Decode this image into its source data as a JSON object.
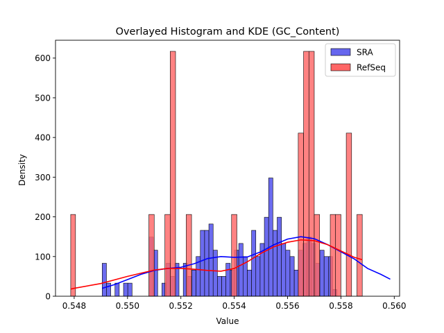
{
  "chart_data": {
    "type": "bar",
    "title": "Overlayed Histogram and KDE (GC_Content)",
    "xlabel": "Value",
    "ylabel": "Density",
    "xlim": [
      0.5473,
      0.5602
    ],
    "ylim": [
      0,
      645
    ],
    "xticks": [
      0.548,
      0.55,
      0.552,
      0.554,
      0.556,
      0.558,
      0.56
    ],
    "xtick_labels": [
      "0.548",
      "0.550",
      "0.552",
      "0.554",
      "0.556",
      "0.558",
      "0.560"
    ],
    "yticks": [
      0,
      100,
      200,
      300,
      400,
      500,
      600
    ],
    "ytick_labels": [
      "0",
      "100",
      "200",
      "300",
      "400",
      "500",
      "600"
    ],
    "legend_position": "top-right",
    "series": [
      {
        "name": "SRA",
        "color": "#0000ff",
        "bar_fill": "#6666ee",
        "bin_edges": [
          0.54905,
          0.55026,
          0.55147,
          0.55268,
          0.55389,
          0.5551,
          0.55631,
          0.55752,
          0.55873,
          0.55994
        ],
        "bins": [
          [
            0.54905,
            0.54921,
            83
          ],
          [
            0.54921,
            0.54937,
            33
          ],
          [
            0.54937,
            0.54953,
            0
          ],
          [
            0.54953,
            0.54969,
            33
          ],
          [
            0.54969,
            0.54985,
            0
          ],
          [
            0.54985,
            0.55001,
            33
          ],
          [
            0.55001,
            0.55017,
            33
          ],
          [
            0.55017,
            0.55033,
            0
          ],
          [
            0.55033,
            0.55049,
            0
          ],
          [
            0.55049,
            0.55065,
            0
          ],
          [
            0.55065,
            0.55081,
            0
          ],
          [
            0.55081,
            0.55097,
            149
          ],
          [
            0.55097,
            0.55113,
            116
          ],
          [
            0.55113,
            0.55129,
            0
          ],
          [
            0.55129,
            0.55145,
            33
          ],
          [
            0.55145,
            0.55161,
            83
          ],
          [
            0.55161,
            0.55177,
            50
          ],
          [
            0.55177,
            0.55193,
            83
          ],
          [
            0.55193,
            0.55209,
            0
          ],
          [
            0.55209,
            0.55225,
            83
          ],
          [
            0.55225,
            0.55241,
            50
          ],
          [
            0.55241,
            0.55257,
            66
          ],
          [
            0.55257,
            0.55273,
            100
          ],
          [
            0.55273,
            0.55289,
            166
          ],
          [
            0.55289,
            0.55305,
            166
          ],
          [
            0.55305,
            0.55321,
            182
          ],
          [
            0.55321,
            0.55337,
            116
          ],
          [
            0.55337,
            0.55353,
            50
          ],
          [
            0.55353,
            0.55369,
            50
          ],
          [
            0.55369,
            0.55385,
            83
          ],
          [
            0.55385,
            0.55401,
            66
          ],
          [
            0.55401,
            0.55417,
            116
          ],
          [
            0.55417,
            0.55433,
            133
          ],
          [
            0.55433,
            0.55449,
            100
          ],
          [
            0.55449,
            0.55465,
            66
          ],
          [
            0.55465,
            0.55481,
            166
          ],
          [
            0.55481,
            0.55497,
            100
          ],
          [
            0.55497,
            0.55513,
            133
          ],
          [
            0.55513,
            0.55529,
            199
          ],
          [
            0.55529,
            0.55545,
            298
          ],
          [
            0.55545,
            0.55561,
            166
          ],
          [
            0.55561,
            0.55577,
            199
          ],
          [
            0.55577,
            0.55593,
            133
          ],
          [
            0.55593,
            0.55609,
            116
          ],
          [
            0.55609,
            0.55625,
            100
          ],
          [
            0.55625,
            0.55641,
            66
          ],
          [
            0.55641,
            0.55657,
            116
          ],
          [
            0.55657,
            0.55673,
            133
          ],
          [
            0.55673,
            0.55689,
            149
          ],
          [
            0.55689,
            0.55705,
            133
          ],
          [
            0.55705,
            0.55721,
            83
          ],
          [
            0.55721,
            0.55737,
            116
          ],
          [
            0.55737,
            0.55753,
            100
          ],
          [
            0.55753,
            0.55769,
            100
          ],
          [
            0.55769,
            0.55785,
            17
          ]
        ],
        "kde": [
          [
            0.54905,
            20
          ],
          [
            0.5495,
            29
          ],
          [
            0.55,
            42
          ],
          [
            0.5505,
            55
          ],
          [
            0.551,
            65
          ],
          [
            0.5515,
            70
          ],
          [
            0.552,
            73
          ],
          [
            0.5525,
            82
          ],
          [
            0.553,
            95
          ],
          [
            0.5535,
            100
          ],
          [
            0.554,
            98
          ],
          [
            0.5545,
            99
          ],
          [
            0.555,
            112
          ],
          [
            0.5555,
            130
          ],
          [
            0.556,
            144
          ],
          [
            0.5565,
            150
          ],
          [
            0.557,
            145
          ],
          [
            0.5575,
            130
          ],
          [
            0.558,
            112
          ],
          [
            0.5585,
            94
          ],
          [
            0.559,
            70
          ],
          [
            0.5595,
            55
          ],
          [
            0.55985,
            43
          ]
        ]
      },
      {
        "name": "RefSeq",
        "color": "#ff0000",
        "bar_fill": "#ff6666",
        "bins": [
          [
            0.54787,
            0.54805,
            206
          ],
          [
            0.5508,
            0.551,
            206
          ],
          [
            0.5514,
            0.5516,
            206
          ],
          [
            0.5516,
            0.5518,
            617
          ],
          [
            0.5522,
            0.5524,
            206
          ],
          [
            0.5539,
            0.5541,
            206
          ],
          [
            0.5564,
            0.5566,
            411
          ],
          [
            0.5566,
            0.5568,
            617
          ],
          [
            0.5568,
            0.557,
            617
          ],
          [
            0.557,
            0.5572,
            206
          ],
          [
            0.5576,
            0.5578,
            206
          ],
          [
            0.5578,
            0.558,
            206
          ],
          [
            0.5582,
            0.5584,
            411
          ],
          [
            0.5586,
            0.5588,
            206
          ]
        ],
        "kde": [
          [
            0.54787,
            18
          ],
          [
            0.548,
            20
          ],
          [
            0.549,
            32
          ],
          [
            0.55,
            50
          ],
          [
            0.551,
            66
          ],
          [
            0.5515,
            70
          ],
          [
            0.552,
            70
          ],
          [
            0.5525,
            68
          ],
          [
            0.553,
            65
          ],
          [
            0.5535,
            63
          ],
          [
            0.554,
            70
          ],
          [
            0.5545,
            87
          ],
          [
            0.555,
            108
          ],
          [
            0.5555,
            125
          ],
          [
            0.556,
            136
          ],
          [
            0.5565,
            142
          ],
          [
            0.557,
            140
          ],
          [
            0.5575,
            130
          ],
          [
            0.558,
            114
          ],
          [
            0.5585,
            98
          ],
          [
            0.5588,
            92
          ]
        ]
      }
    ]
  }
}
